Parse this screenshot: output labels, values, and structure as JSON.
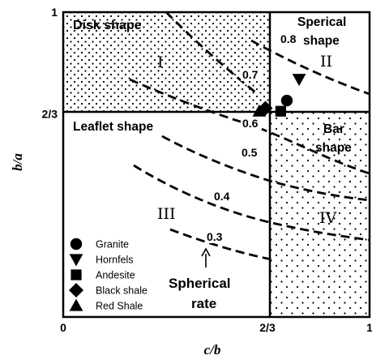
{
  "chart_data": {
    "type": "scatter",
    "title": "",
    "xlabel": "c/b",
    "ylabel": "b/a",
    "xlim": [
      0,
      1
    ],
    "ylim": [
      0,
      1
    ],
    "x_ticks": [
      {
        "value": 0,
        "label": "0"
      },
      {
        "value": 0.6667,
        "label": "2/3"
      },
      {
        "value": 1,
        "label": "1"
      }
    ],
    "y_ticks": [
      {
        "value": 0.6667,
        "label": "2/3"
      },
      {
        "value": 1,
        "label": "1"
      }
    ],
    "zones": [
      {
        "id": "I",
        "numeral": "I",
        "name_lines": [
          "Disk shape"
        ]
      },
      {
        "id": "II",
        "numeral": "II",
        "name_lines": [
          "Sperical",
          "shape"
        ]
      },
      {
        "id": "III",
        "numeral": "III",
        "name_lines": [
          "Leaflet shape"
        ]
      },
      {
        "id": "IV",
        "numeral": "IV",
        "name_lines": [
          "Bar",
          "shape"
        ]
      }
    ],
    "contours": [
      {
        "label": "0.3",
        "value": 0.3
      },
      {
        "label": "0.4",
        "value": 0.4
      },
      {
        "label": "0.5",
        "value": 0.5
      },
      {
        "label": "0.6",
        "value": 0.6
      },
      {
        "label": "0.7",
        "value": 0.7
      },
      {
        "label": "0.8",
        "value": 0.8
      }
    ],
    "contour_annotation": {
      "lines": [
        "Spherical",
        "rate"
      ]
    },
    "series": [
      {
        "name": "Granite",
        "marker": "circle",
        "x": 0.73,
        "y": 0.71
      },
      {
        "name": "Hornfels",
        "marker": "triangle-down",
        "x": 0.77,
        "y": 0.78
      },
      {
        "name": "Andesite",
        "marker": "square",
        "x": 0.71,
        "y": 0.675
      },
      {
        "name": "Black shale",
        "marker": "diamond",
        "x": 0.66,
        "y": 0.685
      },
      {
        "name": "Red Shale",
        "marker": "triangle-up",
        "x": 0.64,
        "y": 0.675
      }
    ],
    "grid": false,
    "legend": {
      "placement": "bottom-left"
    }
  }
}
